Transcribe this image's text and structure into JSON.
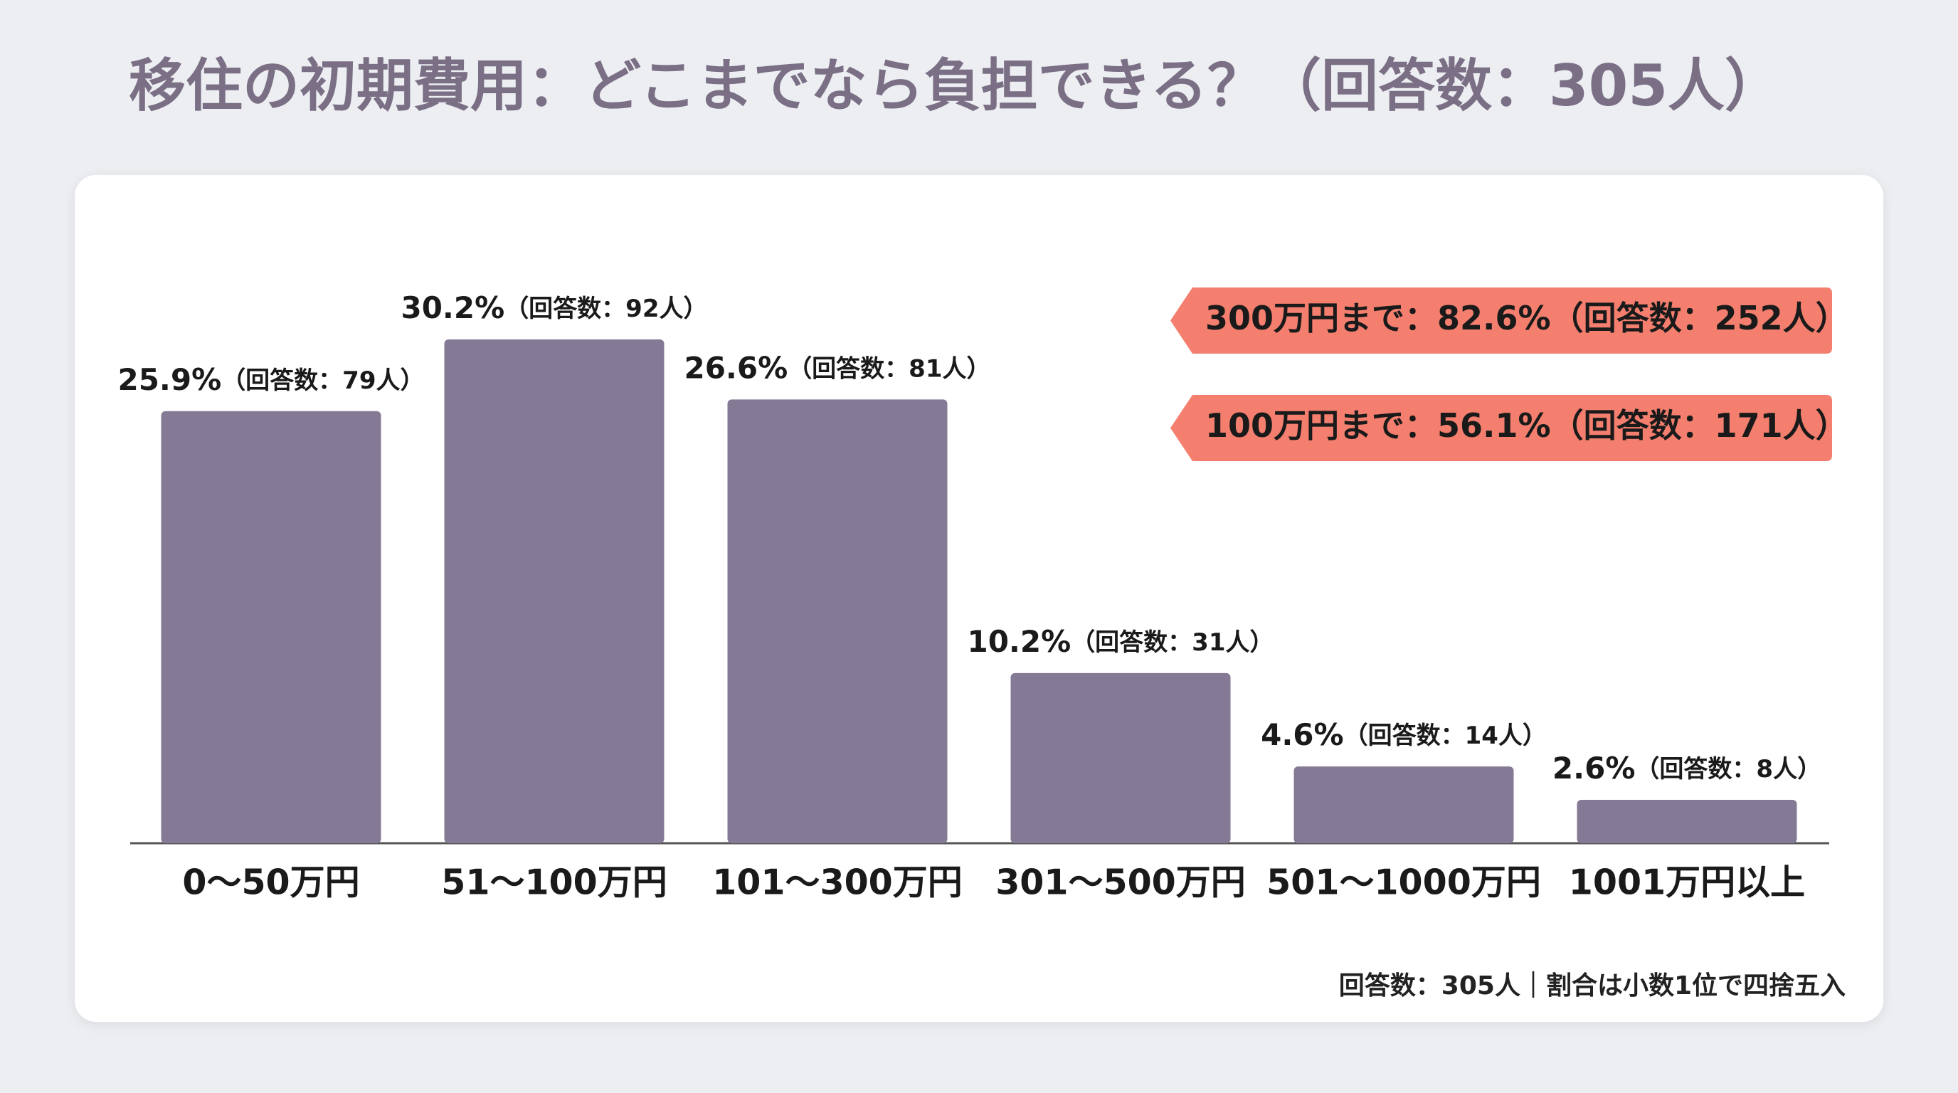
{
  "chart_data": {
    "type": "bar",
    "title": "移住の初期費用：どこまでなら負担できる？（回答数：305人）",
    "categories": [
      "0〜50万円",
      "51〜100万円",
      "101〜300万円",
      "301〜500万円",
      "501〜1000万円",
      "1001万円以上"
    ],
    "values": [
      25.9,
      30.2,
      26.6,
      10.2,
      4.6,
      2.6
    ],
    "value_labels": [
      "25.9%",
      "30.2%",
      "26.6%",
      "10.2%",
      "4.6%",
      "2.6%"
    ],
    "count_labels": [
      "（回答数：79人）",
      "（回答数：92人）",
      "（回答数：81人）",
      "（回答数：31人）",
      "（回答数：14人）",
      "（回答数：8人）"
    ],
    "color": "#857a95",
    "annotations": [
      "300万円まで：82.6%（回答数：252人）",
      "100万円まで：56.1%（回答数：171人）"
    ],
    "annotation_color": "#f47f6e",
    "footnote": "回答数：305人｜割合は小数1位で四捨五入"
  }
}
